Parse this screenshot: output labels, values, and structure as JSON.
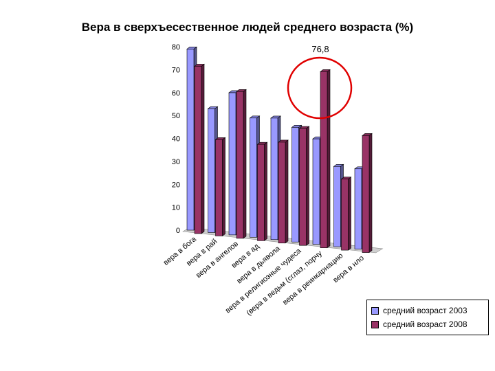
{
  "title": "Вера в сверхъесественное людей среднего возраста (%)",
  "chart_data": {
    "type": "bar",
    "title": "Вера в сверхъесественное людей среднего возраста (%)",
    "categories": [
      "вера в бога",
      "вера в рай",
      "вера в ангелов",
      "вера в ад",
      "вера в дьявола",
      "вера в религиозные чудеса",
      "(вера в ведьм (сглаз, порчу",
      "вера в реинкарнацию",
      "вера в нло"
    ],
    "series": [
      {
        "name": "средний возраст 2003",
        "color": "#9999FF",
        "values": [
          79,
          54,
          62,
          52,
          53,
          50,
          46,
          35,
          35
        ]
      },
      {
        "name": "средний возраст 2008",
        "color": "#993366",
        "values": [
          73,
          42,
          64,
          42,
          44,
          51,
          76.8,
          31,
          51
        ]
      }
    ],
    "y_ticks": [
      "0",
      "10",
      "20",
      "30",
      "40",
      "50",
      "60",
      "70",
      "80"
    ],
    "ylim": [
      0,
      80
    ],
    "legend_position": "bottom-right",
    "annotation": "76,8",
    "grid": false
  }
}
